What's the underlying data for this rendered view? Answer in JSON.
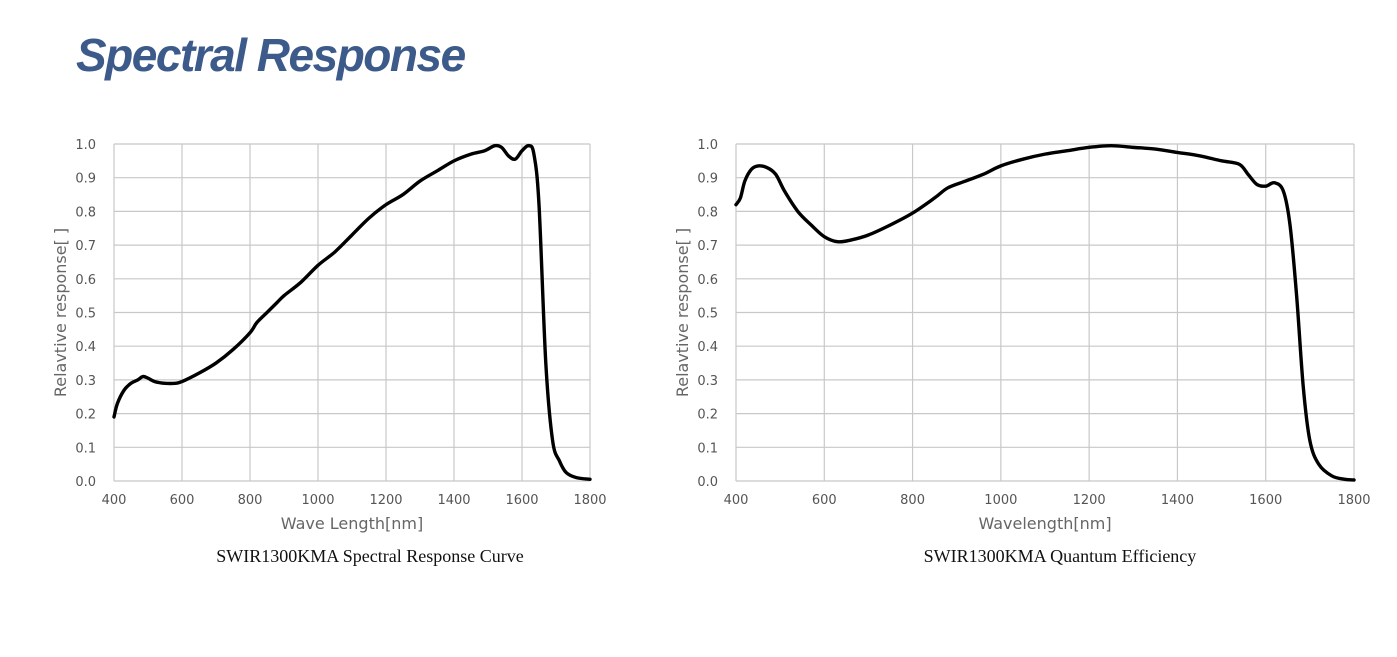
{
  "page": {
    "title": "Spectral Response"
  },
  "chart_data": [
    {
      "type": "line",
      "caption": "SWIR1300KMA Spectral Response Curve",
      "xlabel": "Wave Length[nm]",
      "ylabel": "Relavtive response[ ]",
      "xlim": [
        400,
        1800
      ],
      "ylim": [
        0,
        1
      ],
      "xticks": [
        400,
        600,
        800,
        1000,
        1200,
        1400,
        1600,
        1800
      ],
      "xtick_labels": [
        "400",
        "600",
        "800",
        "1000",
        "1200",
        "1400",
        "1600",
        "1800"
      ],
      "yticks": [
        0,
        0.1,
        0.2,
        0.3,
        0.4,
        0.5,
        0.6,
        0.7,
        0.8,
        0.9,
        1.0
      ],
      "ytick_labels": [
        "0.0",
        "0.1",
        "0.2",
        "0.3",
        "0.4",
        "0.5",
        "0.6",
        "0.7",
        "0.8",
        "0.9",
        "1.0"
      ],
      "grid": true,
      "series": [
        {
          "name": "Spectral Response",
          "color": "#000000",
          "points": [
            [
              400,
              0.19
            ],
            [
              410,
              0.23
            ],
            [
              430,
              0.27
            ],
            [
              450,
              0.29
            ],
            [
              470,
              0.3
            ],
            [
              485,
              0.31
            ],
            [
              500,
              0.305
            ],
            [
              520,
              0.295
            ],
            [
              550,
              0.29
            ],
            [
              580,
              0.29
            ],
            [
              600,
              0.295
            ],
            [
              650,
              0.32
            ],
            [
              700,
              0.35
            ],
            [
              750,
              0.39
            ],
            [
              800,
              0.44
            ],
            [
              820,
              0.47
            ],
            [
              850,
              0.5
            ],
            [
              880,
              0.53
            ],
            [
              900,
              0.55
            ],
            [
              950,
              0.59
            ],
            [
              1000,
              0.64
            ],
            [
              1050,
              0.68
            ],
            [
              1100,
              0.73
            ],
            [
              1150,
              0.78
            ],
            [
              1200,
              0.82
            ],
            [
              1250,
              0.85
            ],
            [
              1300,
              0.89
            ],
            [
              1350,
              0.92
            ],
            [
              1400,
              0.95
            ],
            [
              1450,
              0.97
            ],
            [
              1490,
              0.98
            ],
            [
              1520,
              0.995
            ],
            [
              1540,
              0.99
            ],
            [
              1560,
              0.965
            ],
            [
              1580,
              0.955
            ],
            [
              1600,
              0.98
            ],
            [
              1620,
              0.995
            ],
            [
              1635,
              0.97
            ],
            [
              1650,
              0.82
            ],
            [
              1670,
              0.35
            ],
            [
              1690,
              0.12
            ],
            [
              1710,
              0.06
            ],
            [
              1730,
              0.025
            ],
            [
              1760,
              0.01
            ],
            [
              1800,
              0.005
            ]
          ]
        }
      ]
    },
    {
      "type": "line",
      "caption": "SWIR1300KMA Quantum Efficiency",
      "xlabel": "Wavelength[nm]",
      "ylabel": "Relavtive response[ ]",
      "xlim": [
        400,
        1800
      ],
      "ylim": [
        0,
        1
      ],
      "xticks": [
        400,
        600,
        800,
        1000,
        1200,
        1400,
        1600,
        1800
      ],
      "xtick_labels": [
        "400",
        "600",
        "800",
        "1000",
        "1200",
        "1400",
        "1600",
        "1800"
      ],
      "yticks": [
        0,
        0.1,
        0.2,
        0.3,
        0.4,
        0.5,
        0.6,
        0.7,
        0.8,
        0.9,
        1.0
      ],
      "ytick_labels": [
        "0.0",
        "0.1",
        "0.2",
        "0.3",
        "0.4",
        "0.5",
        "0.6",
        "0.7",
        "0.8",
        "0.9",
        "1.0"
      ],
      "grid": true,
      "series": [
        {
          "name": "Quantum Efficiency",
          "color": "#000000",
          "points": [
            [
              400,
              0.82
            ],
            [
              410,
              0.84
            ],
            [
              420,
              0.89
            ],
            [
              435,
              0.925
            ],
            [
              450,
              0.935
            ],
            [
              470,
              0.93
            ],
            [
              490,
              0.91
            ],
            [
              510,
              0.86
            ],
            [
              540,
              0.8
            ],
            [
              570,
              0.76
            ],
            [
              600,
              0.725
            ],
            [
              630,
              0.71
            ],
            [
              660,
              0.715
            ],
            [
              700,
              0.73
            ],
            [
              750,
              0.76
            ],
            [
              800,
              0.795
            ],
            [
              850,
              0.84
            ],
            [
              880,
              0.87
            ],
            [
              920,
              0.89
            ],
            [
              960,
              0.91
            ],
            [
              1000,
              0.935
            ],
            [
              1050,
              0.955
            ],
            [
              1100,
              0.97
            ],
            [
              1150,
              0.98
            ],
            [
              1200,
              0.99
            ],
            [
              1250,
              0.995
            ],
            [
              1300,
              0.99
            ],
            [
              1350,
              0.985
            ],
            [
              1400,
              0.975
            ],
            [
              1450,
              0.965
            ],
            [
              1500,
              0.95
            ],
            [
              1540,
              0.94
            ],
            [
              1560,
              0.91
            ],
            [
              1580,
              0.88
            ],
            [
              1600,
              0.875
            ],
            [
              1620,
              0.885
            ],
            [
              1640,
              0.86
            ],
            [
              1655,
              0.76
            ],
            [
              1670,
              0.55
            ],
            [
              1685,
              0.28
            ],
            [
              1700,
              0.12
            ],
            [
              1720,
              0.05
            ],
            [
              1750,
              0.015
            ],
            [
              1780,
              0.005
            ],
            [
              1800,
              0.003
            ]
          ]
        }
      ]
    }
  ]
}
